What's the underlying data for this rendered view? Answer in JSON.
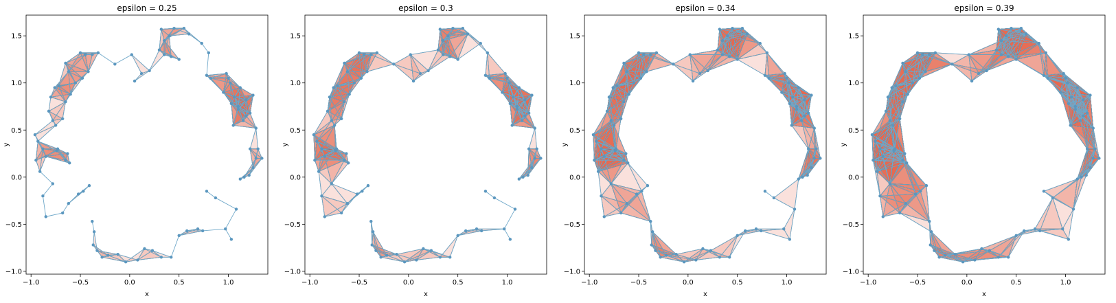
{
  "chart_data": [
    {
      "type": "scatter",
      "title": "epsilon = 0.25",
      "epsilon": 0.25,
      "xlabel": "x",
      "ylabel": "y",
      "xlim": [
        -1.05,
        1.4
      ],
      "ylim": [
        -1.03,
        1.72
      ],
      "xticks": [
        "−1.0",
        "−0.5",
        "0.0",
        "0.5",
        "1.0"
      ],
      "xtick_values": [
        -1,
        -0.5,
        0,
        0.5,
        1
      ],
      "yticks": [
        "−1.0",
        "−0.5",
        "0.0",
        "0.5",
        "1.0",
        "1.5"
      ],
      "ytick_values": [
        -1,
        -0.5,
        0,
        0.5,
        1,
        1.5
      ]
    },
    {
      "type": "scatter",
      "title": "epsilon = 0.3",
      "epsilon": 0.3,
      "xlabel": "x",
      "ylabel": "y",
      "xlim": [
        -1.05,
        1.4
      ],
      "ylim": [
        -1.03,
        1.72
      ],
      "xticks": [
        "−1.0",
        "−0.5",
        "0.0",
        "0.5",
        "1.0"
      ],
      "xtick_values": [
        -1,
        -0.5,
        0,
        0.5,
        1
      ],
      "yticks": [
        "−1.0",
        "−0.5",
        "0.0",
        "0.5",
        "1.0",
        "1.5"
      ],
      "ytick_values": [
        -1,
        -0.5,
        0,
        0.5,
        1,
        1.5
      ]
    },
    {
      "type": "scatter",
      "title": "epsilon = 0.34",
      "epsilon": 0.34,
      "xlabel": "x",
      "ylabel": "y",
      "xlim": [
        -1.05,
        1.4
      ],
      "ylim": [
        -1.03,
        1.72
      ],
      "xticks": [
        "−1.0",
        "−0.5",
        "0.0",
        "0.5",
        "1.0"
      ],
      "xtick_values": [
        -1,
        -0.5,
        0,
        0.5,
        1
      ],
      "yticks": [
        "−1.0",
        "−0.5",
        "0.0",
        "0.5",
        "1.0",
        "1.5"
      ],
      "ytick_values": [
        -1,
        -0.5,
        0,
        0.5,
        1,
        1.5
      ]
    },
    {
      "type": "scatter",
      "title": "epsilon = 0.39",
      "epsilon": 0.39,
      "xlabel": "x",
      "ylabel": "y",
      "xlim": [
        -1.05,
        1.4
      ],
      "ylim": [
        -1.03,
        1.72
      ],
      "xticks": [
        "−1.0",
        "−0.5",
        "0.0",
        "0.5",
        "1.0"
      ],
      "xtick_values": [
        -1,
        -0.5,
        0,
        0.5,
        1
      ],
      "yticks": [
        "−1.0",
        "−0.5",
        "0.0",
        "0.5",
        "1.0",
        "1.5"
      ],
      "ytick_values": [
        -1,
        -0.5,
        0,
        0.5,
        1,
        1.5
      ]
    }
  ],
  "points": {
    "x": [
      -0.96,
      -0.93,
      -0.88,
      -0.85,
      -0.95,
      -0.91,
      -0.78,
      -0.74,
      -0.73,
      -0.63,
      -0.65,
      -0.61,
      -0.52,
      -0.47,
      -0.41,
      -0.38,
      -0.36,
      -0.37,
      -0.33,
      -0.28,
      -0.22,
      -0.12,
      -0.04,
      0.08,
      0.15,
      0.23,
      0.32,
      0.42,
      0.5,
      0.58,
      0.69,
      0.74,
      0.78,
      0.87,
      0.97,
      1.03,
      1.08,
      1.12,
      1.16,
      1.21,
      1.25,
      1.28,
      1.34,
      1.3,
      1.22,
      1.28,
      1.18,
      1.1,
      1.06,
      1.12,
      1.02,
      1.0,
      0.98,
      1.03,
      1.1,
      1.18,
      1.25,
      1.22,
      1.15,
      1.05,
      0.95,
      0.82,
      0.78,
      0.8,
      0.73,
      0.6,
      0.55,
      0.45,
      0.4,
      0.35,
      0.32,
      0.3,
      0.35,
      0.42,
      0.5,
      0.2,
      0.12,
      0.05,
      0.02,
      -0.15,
      -0.32,
      -0.45,
      -0.5,
      -0.62,
      -0.65,
      -0.72,
      -0.76,
      -0.8,
      -0.82,
      -0.78,
      -0.75,
      -0.68,
      -0.65,
      -0.6,
      -0.55,
      -0.48,
      -0.42,
      -0.38,
      -0.62,
      -0.68,
      -0.85,
      -0.88
    ],
    "y": [
      0.45,
      0.38,
      0.3,
      0.22,
      0.18,
      0.06,
      -0.07,
      0.28,
      0.3,
      0.25,
      0.18,
      0.15,
      -0.18,
      -0.15,
      -0.09,
      -0.47,
      -0.58,
      -0.72,
      -0.78,
      -0.85,
      -0.83,
      -0.82,
      -0.9,
      -0.88,
      -0.76,
      -0.78,
      -0.85,
      -0.85,
      -0.62,
      -0.57,
      -0.55,
      -0.57,
      -0.15,
      -0.22,
      -0.55,
      -0.66,
      -0.34,
      -0.02,
      0.0,
      0.02,
      0.1,
      0.2,
      0.2,
      0.3,
      0.3,
      0.52,
      0.65,
      0.72,
      0.85,
      0.95,
      1.0,
      1.05,
      1.1,
      0.78,
      0.75,
      0.82,
      0.87,
      0.68,
      0.6,
      0.55,
      0.9,
      1.05,
      1.08,
      1.32,
      1.42,
      1.52,
      1.58,
      1.58,
      1.5,
      1.45,
      1.57,
      1.35,
      1.3,
      1.28,
      1.25,
      1.13,
      1.1,
      1.02,
      1.3,
      1.2,
      1.32,
      1.3,
      1.32,
      1.12,
      1.21,
      0.97,
      0.95,
      0.85,
      0.7,
      0.6,
      0.55,
      0.62,
      0.8,
      0.88,
      1.0,
      1.05,
      1.12,
      1.3,
      -0.28,
      -0.38,
      -0.42,
      -0.2
    ]
  }
}
